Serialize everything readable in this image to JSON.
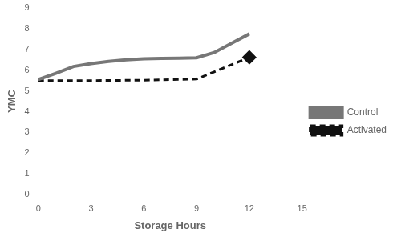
{
  "chart_data": {
    "type": "line",
    "xlabel": "Storage Hours",
    "ylabel": "YMC",
    "series": [
      {
        "name": "Control",
        "color": "#777777",
        "line_style": "solid",
        "x": [
          0,
          1,
          2,
          3,
          4,
          5,
          6,
          7,
          8,
          9,
          10,
          11,
          12
        ],
        "values": [
          5.55,
          5.85,
          6.18,
          6.32,
          6.42,
          6.5,
          6.55,
          6.57,
          6.58,
          6.6,
          6.85,
          7.3,
          7.75
        ]
      },
      {
        "name": "Activated",
        "color": "#111111",
        "line_style": "dashed",
        "marker": "diamond",
        "x": [
          0,
          3,
          6,
          9,
          12
        ],
        "values": [
          5.5,
          5.5,
          5.52,
          5.57,
          6.62
        ]
      }
    ],
    "xlim": [
      0,
      15
    ],
    "ylim": [
      0,
      9
    ],
    "xticks": [
      0,
      3,
      6,
      9,
      12,
      15
    ],
    "yticks": [
      0,
      1,
      2,
      3,
      4,
      5,
      6,
      7,
      8,
      9
    ],
    "grid": false,
    "legend": "right"
  }
}
